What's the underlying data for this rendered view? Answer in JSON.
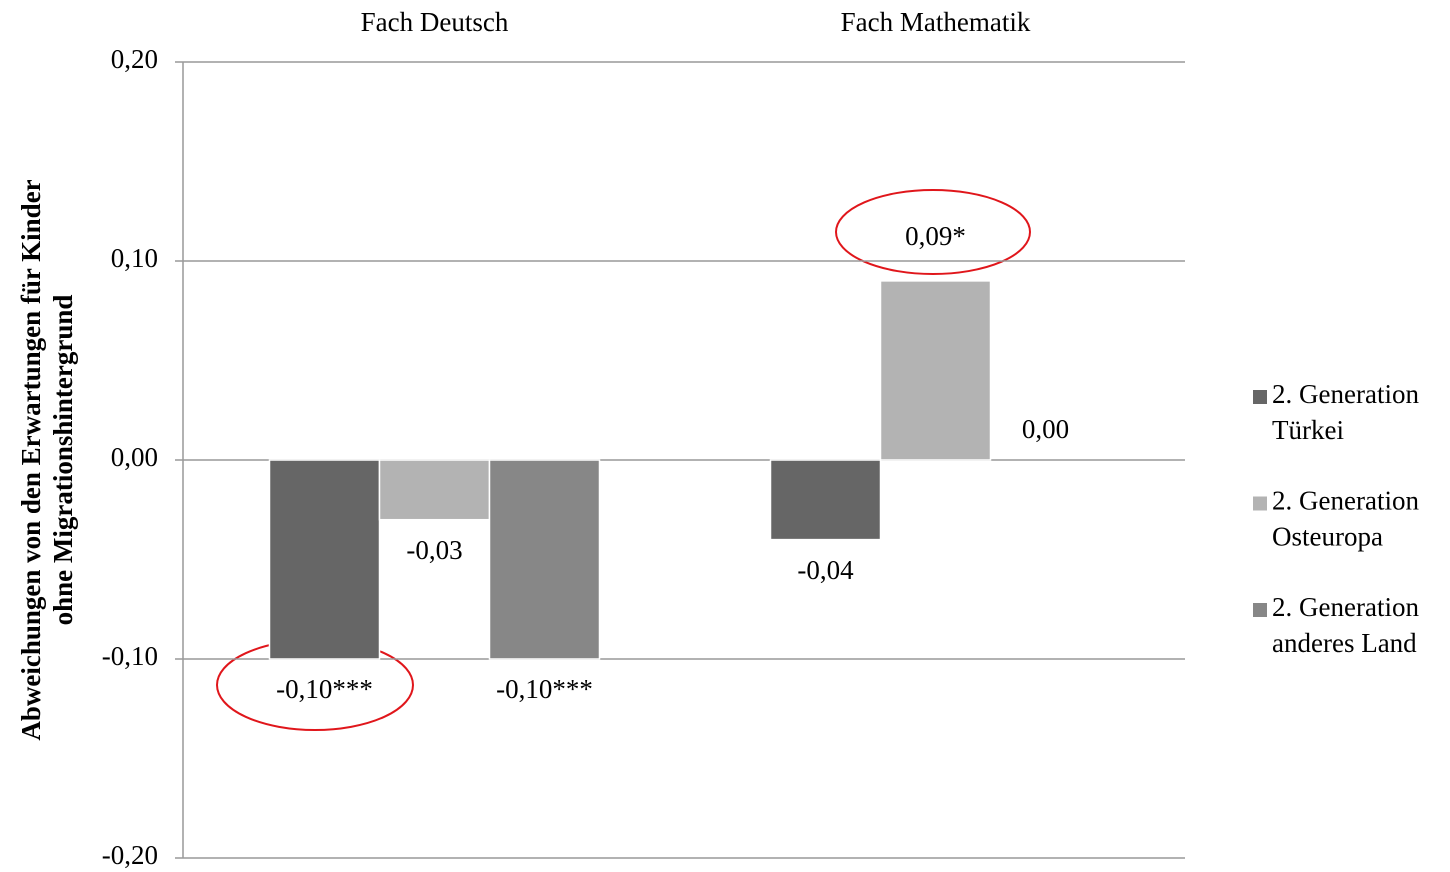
{
  "chart_data": {
    "type": "bar",
    "ylabel": [
      "Abweichungen von den Erwartungen für Kinder",
      "ohne Migrationshintergrund"
    ],
    "categories": [
      "Fach Deutsch",
      "Fach Mathematik"
    ],
    "series": [
      {
        "name": "2. Generation Türkei",
        "color": "#666666",
        "values": [
          -0.1,
          -0.04
        ],
        "value_labels": [
          "-0,10***",
          "-0,04"
        ]
      },
      {
        "name": "2. Generation Osteuropa",
        "color": "#b3b3b3",
        "values": [
          -0.03,
          0.09
        ],
        "value_labels": [
          "-0,03",
          "0,09*"
        ]
      },
      {
        "name": "2. Generation anderes Land",
        "color": "#878787",
        "values": [
          -0.1,
          0.0
        ],
        "value_labels": [
          "-0,10***",
          "0,00"
        ]
      }
    ],
    "ylim": [
      -0.2,
      0.2
    ],
    "yticks": [
      {
        "value": -0.2,
        "label": "-0,20"
      },
      {
        "value": -0.1,
        "label": "-0,10"
      },
      {
        "value": 0,
        "label": "0,00"
      },
      {
        "value": 0.1,
        "label": "0,10"
      },
      {
        "value": 0.2,
        "label": "0,20"
      }
    ],
    "grid": true,
    "legend": "right"
  }
}
